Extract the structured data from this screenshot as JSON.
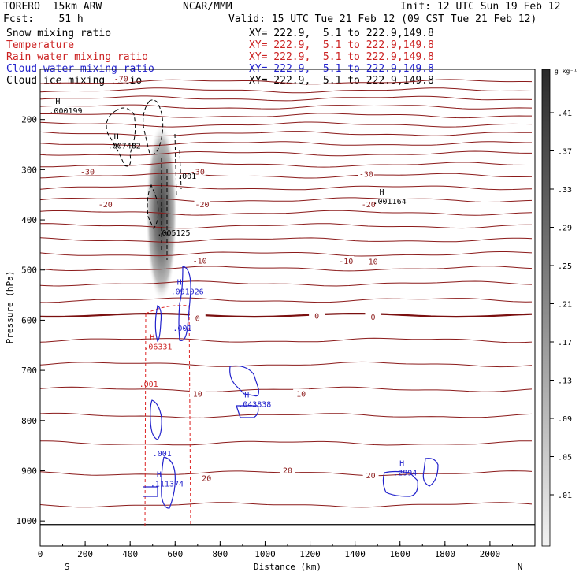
{
  "header": {
    "model": "TORERO  15km ARW",
    "center": "NCAR/MMM",
    "init": "Init: 12 UTC Sun 19 Feb 12",
    "fcst": "Fcst:    51 h",
    "valid": "Valid: 15 UTC Tue 21 Feb 12 (09 CST Tue 21 Feb 12)",
    "fields": [
      {
        "label": "Snow mixing ratio",
        "xy": "XY= 222.9,  5.1 to 222.9,149.8",
        "color": "#000000"
      },
      {
        "label": "Temperature",
        "xy": "XY= 222.9,  5.1 to 222.9,149.8",
        "color": "#cc2222"
      },
      {
        "label": "Rain water mixing ratio",
        "xy": "XY= 222.9,  5.1 to 222.9,149.8",
        "color": "#cc2222"
      },
      {
        "label": "Cloud water mixing ratio",
        "xy": "XY= 222.9,  5.1 to 222.9,149.8",
        "color": "#2222cc"
      },
      {
        "label": "Cloud ice mixing ratio",
        "xy": "XY= 222.9,  5.1 to 222.9,149.8",
        "color": "#000000"
      }
    ]
  },
  "chart_data": {
    "type": "cross-section",
    "xlabel": "Distance (km)",
    "ylabel": "Pressure (hPa)",
    "x_ticks": [
      0,
      200,
      400,
      600,
      800,
      1000,
      1200,
      1400,
      1600,
      1800,
      2000
    ],
    "y_ticks": [
      200,
      300,
      400,
      500,
      600,
      700,
      800,
      900,
      1000
    ],
    "xlim": [
      0,
      2200
    ],
    "ylim": [
      1050,
      100
    ],
    "x_end_labels": {
      "left": "S",
      "right": "N"
    },
    "colorbar": {
      "unit": "g kg⁻¹",
      "ticks": [
        ".41",
        ".37",
        ".33",
        ".29",
        ".25",
        ".21",
        ".17",
        ".13",
        ".09",
        ".05",
        ".01"
      ]
    },
    "temperature_labels": [
      {
        "text": "-70",
        "x": 360,
        "p": 120
      },
      {
        "text": "-30",
        "x": 210,
        "p": 305
      },
      {
        "text": "-30",
        "x": 700,
        "p": 305
      },
      {
        "text": "-30",
        "x": 1450,
        "p": 310
      },
      {
        "text": "-20",
        "x": 290,
        "p": 370
      },
      {
        "text": "-20",
        "x": 720,
        "p": 370
      },
      {
        "text": "-20",
        "x": 1460,
        "p": 370
      },
      {
        "text": "-10",
        "x": 710,
        "p": 482
      },
      {
        "text": "-10",
        "x": 1360,
        "p": 483
      },
      {
        "text": "-10",
        "x": 1470,
        "p": 484
      },
      {
        "text": "0",
        "x": 700,
        "p": 597
      },
      {
        "text": "0",
        "x": 1230,
        "p": 592
      },
      {
        "text": "0",
        "x": 1480,
        "p": 595
      },
      {
        "text": "10",
        "x": 700,
        "p": 748
      },
      {
        "text": "10",
        "x": 1160,
        "p": 748
      },
      {
        "text": "20",
        "x": 740,
        "p": 916
      },
      {
        "text": "20",
        "x": 1100,
        "p": 900
      },
      {
        "text": "20",
        "x": 1470,
        "p": 910
      }
    ],
    "isotherms_p": [
      125,
      142,
      158,
      175,
      192,
      210,
      228,
      248,
      268,
      290,
      312,
      336,
      360,
      386,
      412,
      440,
      468,
      497,
      527,
      560,
      640,
      688,
      738,
      790,
      845,
      905,
      968
    ],
    "freezing_level_p": 590,
    "surface_p": 1008,
    "maxima": [
      {
        "label": "H",
        "value": ".000199",
        "x": 40,
        "p": 185,
        "color": "#000000"
      },
      {
        "label": "H",
        "value": ".007482",
        "x": 300,
        "p": 255,
        "color": "#000000"
      },
      {
        "label": "",
        "value": ".001",
        "x": 610,
        "p": 315,
        "color": "#000000"
      },
      {
        "label": "",
        "value": ".005125",
        "x": 520,
        "p": 428,
        "color": "#000000"
      },
      {
        "label": "H",
        "value": ".001164",
        "x": 1480,
        "p": 365,
        "color": "#000000"
      },
      {
        "label": "H",
        "value": ".091026",
        "x": 580,
        "p": 545,
        "color": "#2222cc"
      },
      {
        "label": "",
        "value": ".001",
        "x": 590,
        "p": 618,
        "color": "#2222cc"
      },
      {
        "label": "H",
        "value": ".06331",
        "x": 460,
        "p": 655,
        "color": "#cc2222"
      },
      {
        "label": "",
        "value": ".001",
        "x": 440,
        "p": 730,
        "color": "#cc2222"
      },
      {
        "label": "H",
        "value": ".043838",
        "x": 880,
        "p": 770,
        "color": "#2222cc"
      },
      {
        "label": "",
        "value": ".001",
        "x": 500,
        "p": 868,
        "color": "#2222cc"
      },
      {
        "label": "H",
        "value": ".111374",
        "x": 490,
        "p": 928,
        "color": "#2222cc"
      },
      {
        "label": "H",
        "value": ".2994",
        "x": 1570,
        "p": 906,
        "color": "#2222cc"
      }
    ]
  }
}
